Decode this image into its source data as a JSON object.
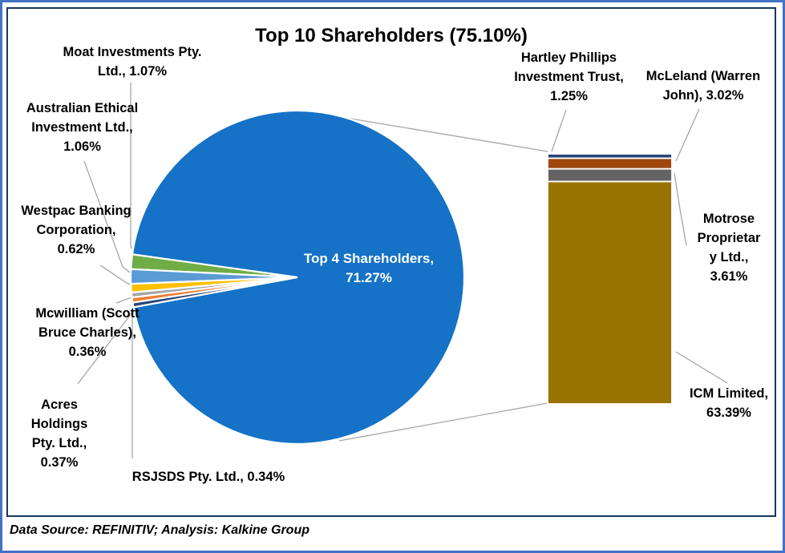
{
  "title": "Top 10 Shareholders (75.10%)",
  "center_label": "Top 4 Shareholders,\n71.27%",
  "source_note": "Data Source: REFINITIV; Analysis: Kalkine Group",
  "labels": {
    "moat": "Moat Investments Pty.\nLtd., 1.07%",
    "australian_ethical": "Australian Ethical\nInvestment Ltd.,\n1.06%",
    "westpac": "Westpac Banking\nCorporation,\n0.62%",
    "mcwilliam": "Mcwilliam (Scott\nBruce Charles),\n0.36%",
    "acres": "Acres\nHoldings\nPty. Ltd.,\n0.37%",
    "rsjsds": "RSJSDS Pty. Ltd., 0.34%",
    "hartley": "Hartley Phillips\nInvestment Trust,\n1.25%",
    "mcleland": "McLeland (Warren\nJohn), 3.02%",
    "motrose": "Motrose\nProprietar\ny Ltd.,\n3.61%",
    "icm": "ICM Limited,\n63.39%"
  },
  "colors": {
    "outer_frame": "#4472C4",
    "inner_frame": "#17375E",
    "connector_line": "#A6A6A6",
    "center_label_text": "#FFFFFF"
  },
  "chart_data": {
    "type": "pie",
    "subtype": "bar-of-pie",
    "title": "Top 10 Shareholders (75.10%)",
    "total_percent": 75.1,
    "legend_position": "none",
    "pie_slices": [
      {
        "label": "Top 4 Shareholders",
        "value": 71.27,
        "color": "#1572C6"
      },
      {
        "label": "Moat Investments Pty. Ltd.",
        "value": 1.07,
        "color": "#70AD47"
      },
      {
        "label": "Australian Ethical Investment Ltd.",
        "value": 1.06,
        "color": "#5B9BD5"
      },
      {
        "label": "Westpac Banking Corporation",
        "value": 0.62,
        "color": "#FFC000"
      },
      {
        "label": "Mcwilliam (Scott Bruce Charles)",
        "value": 0.36,
        "color": "#A5A5A5"
      },
      {
        "label": "Acres Holdings Pty. Ltd.",
        "value": 0.37,
        "color": "#ED7D31"
      },
      {
        "label": "RSJSDS Pty. Ltd.",
        "value": 0.34,
        "color": "#264478"
      }
    ],
    "bar_segments": [
      {
        "label": "Hartley Phillips Investment Trust",
        "value": 1.25,
        "color": "#264478"
      },
      {
        "label": "McLeland (Warren John)",
        "value": 3.02,
        "color": "#9E480E"
      },
      {
        "label": "Motrose Proprietary Ltd.",
        "value": 3.61,
        "color": "#636363"
      },
      {
        "label": "ICM Limited",
        "value": 63.39,
        "color": "#997300"
      }
    ],
    "source": "Data Source: REFINITIV; Analysis: Kalkine Group"
  }
}
